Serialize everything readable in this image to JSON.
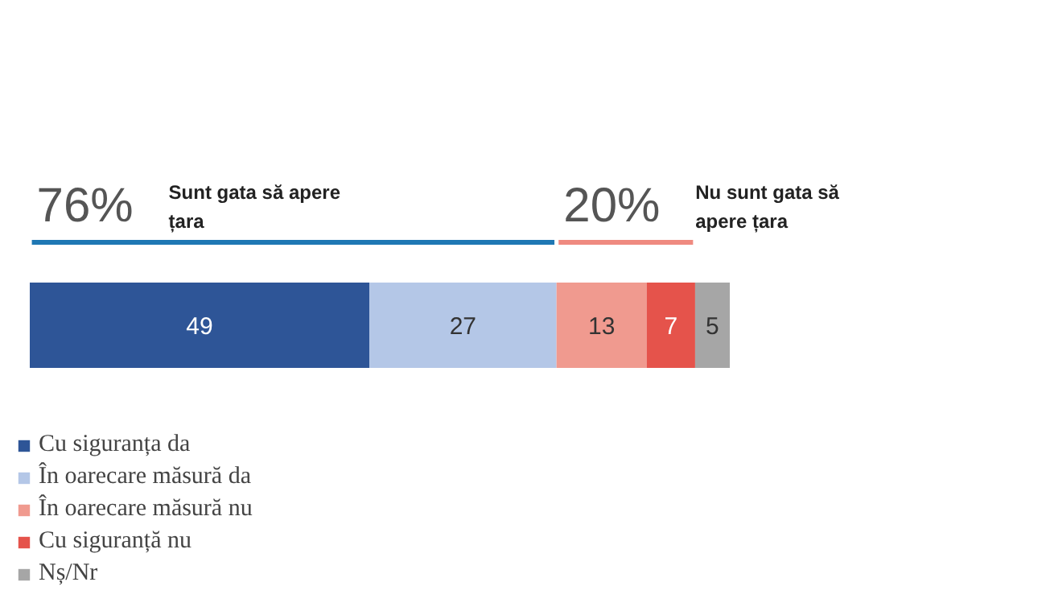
{
  "chart_data": {
    "type": "bar",
    "orientation": "horizontal",
    "stacked": true,
    "categories": [
      null
    ],
    "series": [
      {
        "name": "Cu siguranța da",
        "color": "#2e5597",
        "values": [
          49
        ]
      },
      {
        "name": "În oarecare măsură da",
        "color": "#b4c7e7",
        "values": [
          27
        ]
      },
      {
        "name": "În oarecare măsură nu",
        "color": "#f09a8f",
        "values": [
          13
        ]
      },
      {
        "name": "Cu siguranță nu",
        "color": "#e5534b",
        "values": [
          7
        ]
      },
      {
        "name": "Nș/Nr",
        "color": "#a6a6a6",
        "values": [
          5
        ]
      }
    ],
    "annotations": [
      "76%",
      "Sunt gata să apere țara",
      "20%",
      "Nu sunt gata să apere țara"
    ],
    "data_labels": true,
    "legend": "bottom left"
  }
}
